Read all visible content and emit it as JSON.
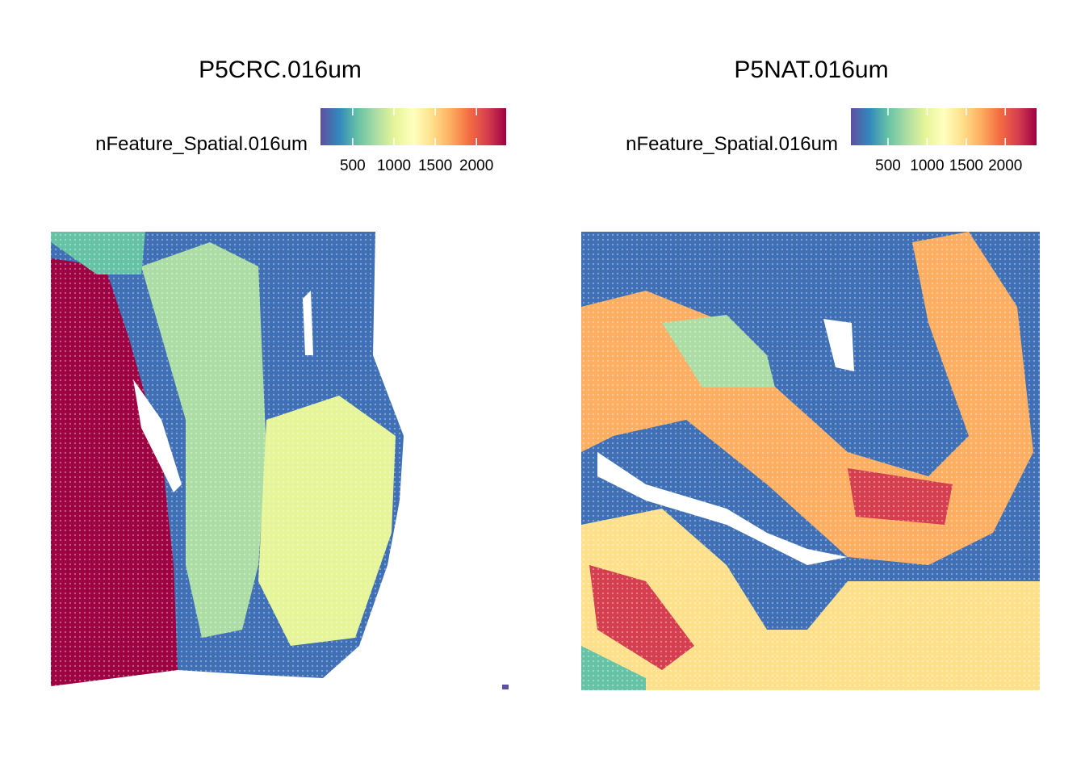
{
  "chart_data": [
    {
      "type": "spatial",
      "title": "P5CRC.016um",
      "legend_title": "nFeature_Spatial.016um",
      "colors": [
        "#5e4fa2",
        "#3288bd",
        "#66c2a5",
        "#abdda4",
        "#e6f598",
        "#ffffbf",
        "#fee08b",
        "#fdae61",
        "#f46d43",
        "#d53e4f",
        "#9e0142"
      ],
      "clim": [
        110,
        2360
      ],
      "cticks": [
        500,
        1000,
        1500,
        2000
      ]
    },
    {
      "type": "spatial",
      "title": "P5NAT.016um",
      "legend_title": "nFeature_Spatial.016um",
      "colors": [
        "#5e4fa2",
        "#3288bd",
        "#66c2a5",
        "#abdda4",
        "#e6f598",
        "#ffffbf",
        "#fee08b",
        "#fdae61",
        "#f46d43",
        "#d53e4f",
        "#9e0142"
      ],
      "clim": [
        25,
        2400
      ],
      "cticks": [
        500,
        1000,
        1500,
        2000
      ]
    }
  ]
}
